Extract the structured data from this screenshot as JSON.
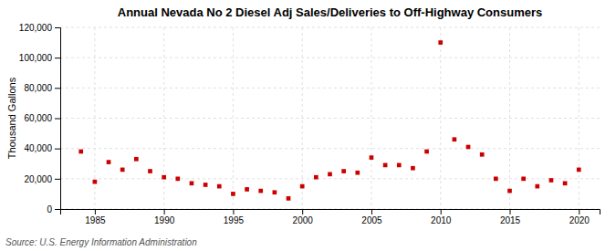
{
  "chart_data": {
    "type": "scatter",
    "title": "Annual Nevada No 2 Diesel Adj Sales/Deliveries to Off-Highway Consumers",
    "y_label": "Thousand Gallons",
    "annotation": "Source: U.S. Energy Information Administration",
    "x": [
      1984,
      1985,
      1986,
      1987,
      1988,
      1989,
      1990,
      1991,
      1992,
      1993,
      1994,
      1995,
      1996,
      1997,
      1998,
      1999,
      2000,
      2001,
      2002,
      2003,
      2004,
      2005,
      2006,
      2007,
      2008,
      2009,
      2010,
      2011,
      2012,
      2013,
      2014,
      2015,
      2016,
      2017,
      2018,
      2019,
      2020
    ],
    "values": [
      38000,
      18000,
      31000,
      26000,
      33000,
      25000,
      21000,
      20000,
      17000,
      16000,
      15000,
      10000,
      13000,
      12000,
      11000,
      7000,
      15000,
      21000,
      23000,
      25000,
      24000,
      34000,
      29000,
      29000,
      27000,
      38000,
      110000,
      46000,
      41000,
      36000,
      20000,
      12000,
      20000,
      15000,
      19000,
      17000,
      26000
    ],
    "color": "#cc0000",
    "marker": "square",
    "xlim": [
      1982.5,
      2021.5
    ],
    "xticks": [
      1985,
      1990,
      1995,
      2000,
      2005,
      2010,
      2015,
      2020
    ],
    "ylim": [
      0,
      120000
    ],
    "yticks": [
      0,
      {
        "value": 20000,
        "label": "20,000"
      },
      {
        "value": 40000,
        "label": "40,000"
      },
      {
        "value": 60000,
        "label": "60,000"
      },
      {
        "value": 80000,
        "label": "80,000"
      },
      {
        "value": 100000,
        "label": "100,000"
      },
      {
        "value": 120000,
        "label": "120,000"
      }
    ],
    "grid": true
  }
}
